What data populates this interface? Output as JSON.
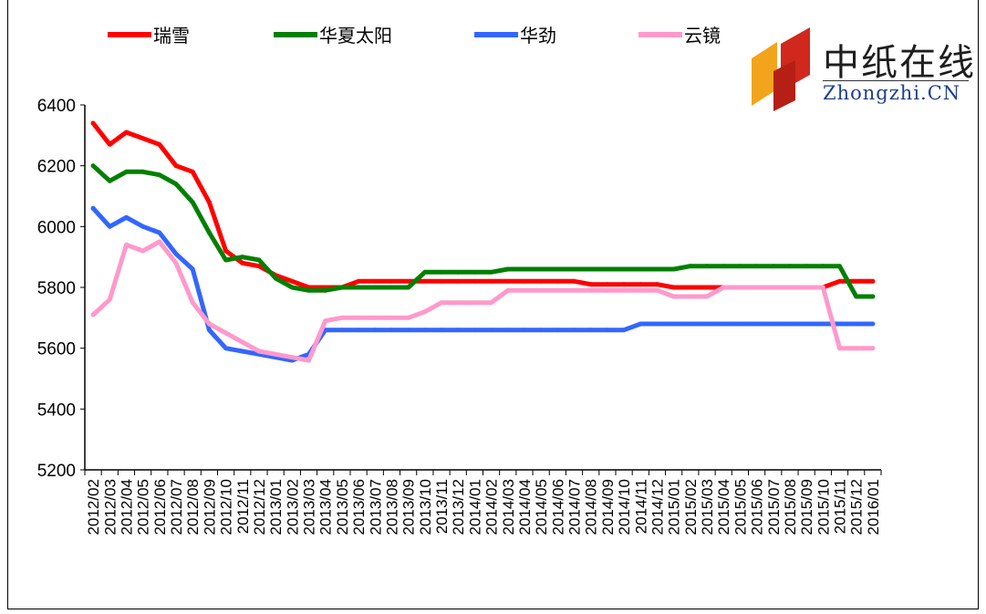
{
  "logo": {
    "cn_text": "中纸在线",
    "en_text": "Zhongzhi.CN",
    "colors": {
      "orange": "#f2a51c",
      "red": "#d0281c",
      "text": "#1e1e1e",
      "en": "#1f3f8a"
    }
  },
  "chart_data": {
    "type": "line",
    "title": "",
    "xlabel": "",
    "ylabel": "",
    "ylim": [
      5200,
      6400
    ],
    "yticks": [
      5200,
      5400,
      5600,
      5800,
      6000,
      6200,
      6400
    ],
    "grid": false,
    "legend_position": "top",
    "x": [
      "2012/02",
      "2012/03",
      "2012/04",
      "2012/05",
      "2012/06",
      "2012/07",
      "2012/08",
      "2012/09",
      "2012/10",
      "2012/11",
      "2012/12",
      "2013/01",
      "2013/02",
      "2013/03",
      "2013/04",
      "2013/05",
      "2013/06",
      "2013/07",
      "2013/08",
      "2013/09",
      "2013/10",
      "2013/11",
      "2013/12",
      "2014/01",
      "2014/02",
      "2014/03",
      "2014/04",
      "2014/05",
      "2014/06",
      "2014/07",
      "2014/08",
      "2014/09",
      "2014/10",
      "2014/11",
      "2014/12",
      "2015/01",
      "2015/02",
      "2015/03",
      "2015/04",
      "2015/05",
      "2015/06",
      "2015/07",
      "2015/08",
      "2015/09",
      "2015/10",
      "2015/11",
      "2015/12",
      "2016/01"
    ],
    "series": [
      {
        "name": "瑞雪",
        "color": "#ff0000",
        "values": [
          6340,
          6270,
          6310,
          6290,
          6270,
          6200,
          6180,
          6080,
          5920,
          5880,
          5870,
          5840,
          5820,
          5800,
          5800,
          5800,
          5820,
          5820,
          5820,
          5820,
          5820,
          5820,
          5820,
          5820,
          5820,
          5820,
          5820,
          5820,
          5820,
          5820,
          5810,
          5810,
          5810,
          5810,
          5810,
          5800,
          5800,
          5800,
          5800,
          5800,
          5800,
          5800,
          5800,
          5800,
          5800,
          5820,
          5820,
          5820
        ]
      },
      {
        "name": "华夏太阳",
        "color": "#008000",
        "values": [
          6200,
          6150,
          6180,
          6180,
          6170,
          6140,
          6080,
          5980,
          5890,
          5900,
          5890,
          5830,
          5800,
          5790,
          5790,
          5800,
          5800,
          5800,
          5800,
          5800,
          5850,
          5850,
          5850,
          5850,
          5850,
          5860,
          5860,
          5860,
          5860,
          5860,
          5860,
          5860,
          5860,
          5860,
          5860,
          5860,
          5870,
          5870,
          5870,
          5870,
          5870,
          5870,
          5870,
          5870,
          5870,
          5870,
          5770,
          5770
        ]
      },
      {
        "name": "华劲",
        "color": "#3366ff",
        "values": [
          6060,
          6000,
          6030,
          6000,
          5980,
          5910,
          5860,
          5660,
          5600,
          5590,
          5580,
          5570,
          5560,
          5580,
          5660,
          5660,
          5660,
          5660,
          5660,
          5660,
          5660,
          5660,
          5660,
          5660,
          5660,
          5660,
          5660,
          5660,
          5660,
          5660,
          5660,
          5660,
          5660,
          5680,
          5680,
          5680,
          5680,
          5680,
          5680,
          5680,
          5680,
          5680,
          5680,
          5680,
          5680,
          5680,
          5680,
          5680
        ]
      },
      {
        "name": "云镜",
        "color": "#ff99cc",
        "values": [
          5710,
          5760,
          5940,
          5920,
          5950,
          5880,
          5750,
          5680,
          5650,
          5620,
          5590,
          5580,
          5570,
          5560,
          5690,
          5700,
          5700,
          5700,
          5700,
          5700,
          5720,
          5750,
          5750,
          5750,
          5750,
          5790,
          5790,
          5790,
          5790,
          5790,
          5790,
          5790,
          5790,
          5790,
          5790,
          5770,
          5770,
          5770,
          5800,
          5800,
          5800,
          5800,
          5800,
          5800,
          5800,
          5600,
          5600,
          5600
        ]
      }
    ]
  }
}
